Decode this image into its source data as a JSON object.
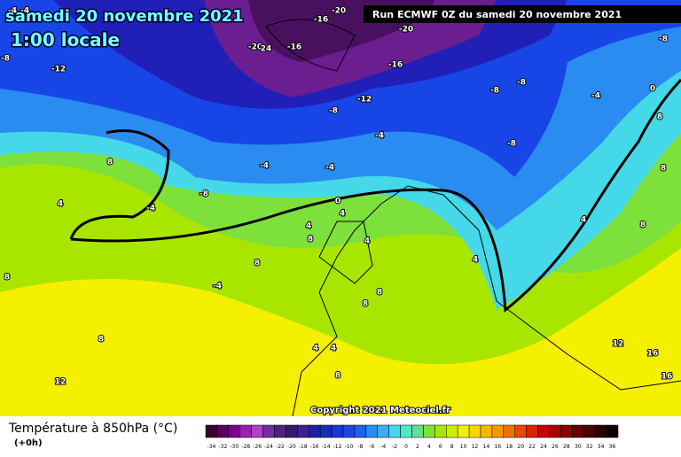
{
  "header": {
    "date": "samedi 20 novembre 2021",
    "time": "1:00 locale",
    "run": "Run ECMWF 0Z du samedi 20 novembre 2021"
  },
  "copyright": "Copyright 2021 Meteociel.fr",
  "contour_labels": [
    "-4",
    "-4",
    "-8",
    "-12",
    "-20",
    "24",
    "-16",
    "-16",
    "-20",
    "-20",
    "-16",
    "-12",
    "-8",
    "-8",
    "-8",
    "-8",
    "-4",
    "0",
    "8",
    "-8",
    "-4",
    "-4",
    "-4",
    "-8",
    "-4",
    "4",
    "8",
    "0",
    "4",
    "4",
    "8",
    "4",
    "8",
    "-4",
    "4",
    "4",
    "8",
    "8",
    "8",
    "8",
    "12",
    "4",
    "4",
    "8",
    "12",
    "16",
    "16",
    "8",
    "8"
  ],
  "legend": {
    "title": "Température à 850hPa (°C)",
    "step": "(+0h)",
    "labels": [
      -34,
      -32,
      -30,
      -28,
      -26,
      -24,
      -22,
      -20,
      -18,
      -16,
      -14,
      -12,
      -10,
      -8,
      -6,
      -4,
      -2,
      0,
      2,
      4,
      6,
      8,
      10,
      12,
      14,
      16,
      18,
      20,
      22,
      24,
      26,
      28,
      30,
      32,
      34,
      36
    ]
  }
}
